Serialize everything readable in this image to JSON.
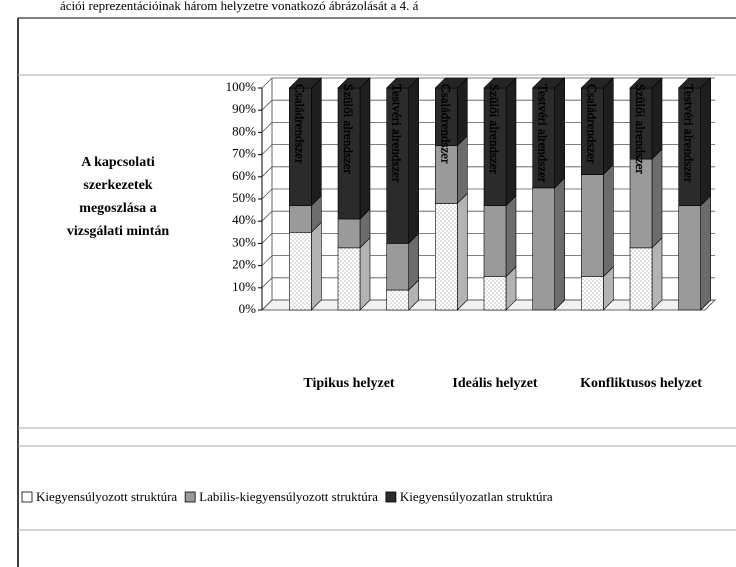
{
  "header_text": "ációi reprezentációinak három helyzetre vonatkozó ábrázolását a 4. á",
  "chart_data": {
    "type": "bar",
    "stacked": true,
    "title_lines": [
      "A kapcsolati",
      "szerkezetek",
      "megoszlása a",
      "vizsgálati mintán"
    ],
    "categories": [
      "Családrendszer",
      "Szülői alrendszer",
      "Testvéri alrendszer",
      "Családrendszer",
      "Szülői alrendszer",
      "Testvéri alrendszer",
      "Családrendszer",
      "Szülői alrendszer",
      "Testvéri alrendszer"
    ],
    "group_labels": [
      "Tipikus helyzet",
      "Ideális helyzet",
      "Konfliktusos helyzet"
    ],
    "series": [
      {
        "name": "Kiegyensúlyozott struktúra",
        "color": "#ffffff",
        "values": [
          35,
          28,
          9,
          48,
          15,
          0,
          15,
          28,
          0
        ]
      },
      {
        "name": "Labilis-kiegyensúlyozott struktúra",
        "color": "#9a9a9a",
        "values": [
          12,
          13,
          21,
          26,
          32,
          55,
          46,
          40,
          47
        ]
      },
      {
        "name": "Kiegyensúlyozatlan struktúra",
        "color": "#2b2b2b",
        "values": [
          53,
          59,
          70,
          26,
          53,
          45,
          39,
          32,
          53
        ]
      }
    ],
    "ylim": [
      0,
      100
    ],
    "yticks": [
      {
        "value": 0,
        "label": "0%"
      },
      {
        "value": 10,
        "label": "10%"
      },
      {
        "value": 20,
        "label": "20%"
      },
      {
        "value": 30,
        "label": "30%"
      },
      {
        "value": 40,
        "label": "40%"
      },
      {
        "value": 50,
        "label": "50%"
      },
      {
        "value": 60,
        "label": "60%"
      },
      {
        "value": 70,
        "label": "70%"
      },
      {
        "value": 80,
        "label": "80%"
      },
      {
        "value": 90,
        "label": "90%"
      },
      {
        "value": 100,
        "label": "100%"
      }
    ],
    "grid": true
  }
}
